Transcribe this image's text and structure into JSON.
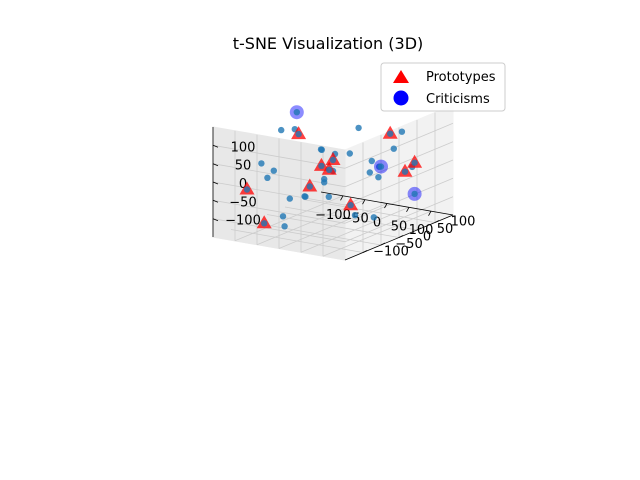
{
  "chart_data": {
    "type": "scatter",
    "title": "t-SNE Visualization (3D)",
    "projection": "3d",
    "xlabel": "",
    "ylabel": "",
    "zlabel": "",
    "x_ticks": [
      "−100",
      "−50",
      "0",
      "50",
      "100"
    ],
    "y_ticks": [
      "−100",
      "−50",
      "0",
      "50",
      "100"
    ],
    "z_ticks": [
      "−100",
      "−50",
      "0",
      "50",
      "100"
    ],
    "xlim": [
      -150,
      150
    ],
    "ylim": [
      -150,
      150
    ],
    "zlim": [
      -150,
      150
    ],
    "grid": true,
    "legend_position": "top-right",
    "colors": {
      "points": "#1f77b4",
      "prototypes": "#ff0000",
      "criticisms": "#0000ff"
    },
    "series": [
      {
        "marker": "circle-small",
        "color": "#1f77b4",
        "points": [
          {
            "x": 65,
            "y": 112,
            "z": 75
          },
          {
            "x": -85,
            "y": -40,
            "z": 110
          },
          {
            "x": -95,
            "y": 10,
            "z": 90
          },
          {
            "x": -40,
            "y": 120,
            "z": 60
          },
          {
            "x": -130,
            "y": -40,
            "z": 10
          },
          {
            "x": -110,
            "y": -30,
            "z": -10
          },
          {
            "x": -100,
            "y": -60,
            "z": -15
          },
          {
            "x": -60,
            "y": 40,
            "z": 30
          },
          {
            "x": -20,
            "y": 30,
            "z": 30
          },
          {
            "x": 40,
            "y": 120,
            "z": 20
          },
          {
            "x": 90,
            "y": 110,
            "z": -15
          },
          {
            "x": 15,
            "y": 110,
            "z": -30
          },
          {
            "x": 5,
            "y": 120,
            "z": -65
          },
          {
            "x": -90,
            "y": -10,
            "z": -90
          },
          {
            "x": -40,
            "y": -30,
            "z": -65
          },
          {
            "x": -30,
            "y": -40,
            "z": -60
          },
          {
            "x": 15,
            "y": -30,
            "z": -55
          },
          {
            "x": -40,
            "y": -90,
            "z": -95
          },
          {
            "x": -20,
            "y": -110,
            "z": -110
          },
          {
            "x": 60,
            "y": 40,
            "z": -130
          },
          {
            "x": -110,
            "y": 110,
            "z": -90
          },
          {
            "x": -50,
            "y": 30,
            "z": 35
          },
          {
            "x": 0,
            "y": 0,
            "z": 0
          },
          {
            "x": 50,
            "y": 0,
            "z": -110
          },
          {
            "x": -20,
            "y": 0,
            "z": -35
          },
          {
            "x": 80,
            "y": 10,
            "z": 40
          },
          {
            "x": 100,
            "y": -20,
            "z": 25
          },
          {
            "x": 30,
            "y": 10,
            "z": 50
          }
        ]
      },
      {
        "name": "Prototypes",
        "marker": "triangle",
        "color": "#ff0000",
        "points": [
          {
            "x": 40,
            "y": 110,
            "z": 65
          },
          {
            "x": -70,
            "y": -10,
            "z": 90
          },
          {
            "x": -10,
            "y": -20,
            "z": 20
          },
          {
            "x": 0,
            "y": 0,
            "z": 30
          },
          {
            "x": 120,
            "y": 80,
            "z": 15
          },
          {
            "x": 90,
            "y": 90,
            "z": -20
          },
          {
            "x": -130,
            "y": -80,
            "z": -45
          },
          {
            "x": -20,
            "y": -40,
            "z": -30
          },
          {
            "x": -25,
            "y": 20,
            "z": -10
          },
          {
            "x": 40,
            "y": 0,
            "z": -85
          },
          {
            "x": -50,
            "y": -130,
            "z": -100
          }
        ]
      },
      {
        "name": "Criticisms",
        "marker": "circle",
        "color": "#0000ff",
        "points": [
          {
            "x": -115,
            "y": 40,
            "z": 120
          },
          {
            "x": 60,
            "y": 60,
            "z": 0
          },
          {
            "x": 120,
            "y": 80,
            "z": -70
          }
        ]
      }
    ]
  }
}
